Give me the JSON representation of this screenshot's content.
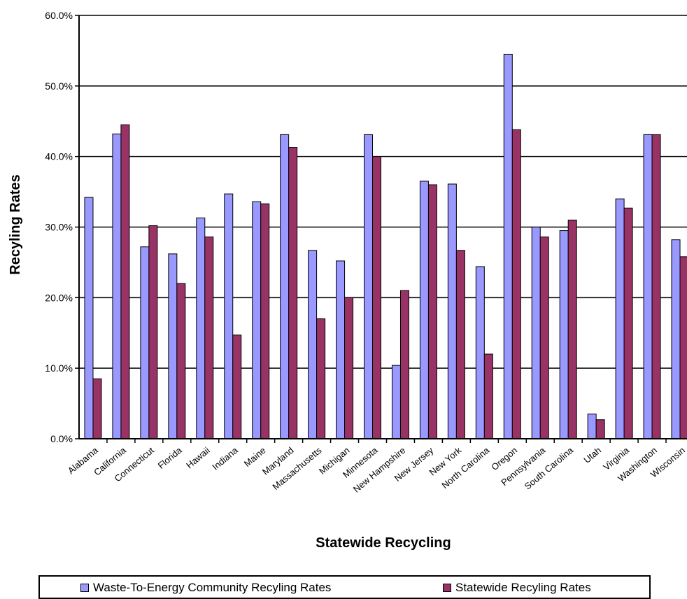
{
  "chart_data": {
    "type": "bar",
    "title": "",
    "xlabel": "Statewide Recycling",
    "ylabel": "Recyling Rates",
    "ylim": [
      0,
      60
    ],
    "yticks": [
      "0.0%",
      "10.0%",
      "20.0%",
      "30.0%",
      "40.0%",
      "50.0%",
      "60.0%"
    ],
    "grid": true,
    "legend_position": "bottom",
    "categories": [
      "Alabama",
      "California",
      "Connecticut",
      "Florida",
      "Hawaii",
      "Indiana",
      "Maine",
      "Maryland",
      "Massachusetts",
      "Michigan",
      "Minnesota",
      "New Hampshire",
      "New Jersey",
      "New York",
      "North Carolina",
      "Oregon",
      "Pennsylvania",
      "South Carolina",
      "Utah",
      "Virginia",
      "Washington",
      "Wisconsin"
    ],
    "series": [
      {
        "name": "Waste-To-Energy Community Recyling Rates",
        "color": "#9999ff",
        "values": [
          34.2,
          43.2,
          27.2,
          26.2,
          31.3,
          34.7,
          33.6,
          43.1,
          26.7,
          25.2,
          43.1,
          10.4,
          36.5,
          36.1,
          24.4,
          54.5,
          30.0,
          29.5,
          3.5,
          34.0,
          43.1,
          28.2
        ]
      },
      {
        "name": "Statewide Recyling Rates",
        "color": "#993366",
        "values": [
          8.5,
          44.5,
          30.2,
          22.0,
          28.6,
          14.7,
          33.3,
          41.3,
          17.0,
          20.0,
          40.0,
          21.0,
          36.0,
          26.7,
          12.0,
          43.8,
          28.6,
          31.0,
          2.7,
          32.7,
          43.1,
          25.8
        ]
      }
    ]
  }
}
